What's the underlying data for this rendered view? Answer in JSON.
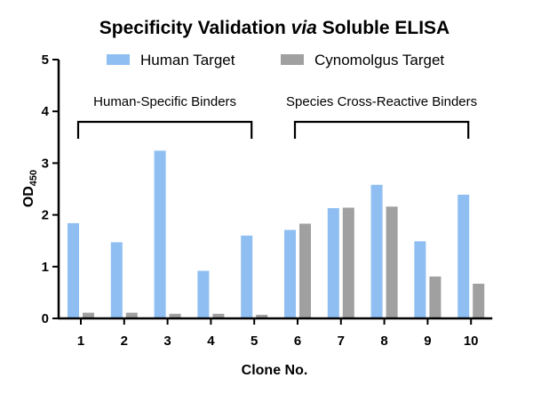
{
  "chart_data": {
    "type": "bar",
    "title": {
      "prefix": "Specificity Validation ",
      "italic": "via",
      "suffix": " Soluble ELISA"
    },
    "xlabel": "Clone No.",
    "ylabel": {
      "main": "OD",
      "subscript": "450"
    },
    "categories": [
      "1",
      "2",
      "3",
      "4",
      "5",
      "6",
      "7",
      "8",
      "9",
      "10"
    ],
    "series": [
      {
        "name": "Human Target",
        "color": "#8fbff2",
        "values": [
          1.84,
          1.47,
          3.24,
          0.92,
          1.6,
          1.71,
          2.13,
          2.58,
          1.49,
          2.39
        ]
      },
      {
        "name": "Cynomolgus Target",
        "color": "#a0a0a0",
        "values": [
          0.11,
          0.11,
          0.09,
          0.09,
          0.07,
          1.83,
          2.14,
          2.16,
          0.81,
          0.67
        ]
      }
    ],
    "ylim": [
      0,
      5
    ],
    "yticks": [
      "0",
      "1",
      "2",
      "3",
      "4",
      "5"
    ],
    "grid": false,
    "legend_position": "top",
    "annotations": [
      {
        "label": "Human-Specific Binders",
        "from_category": "1",
        "to_category": "5"
      },
      {
        "label": "Species Cross-Reactive Binders",
        "from_category": "6",
        "to_category": "10"
      }
    ]
  }
}
